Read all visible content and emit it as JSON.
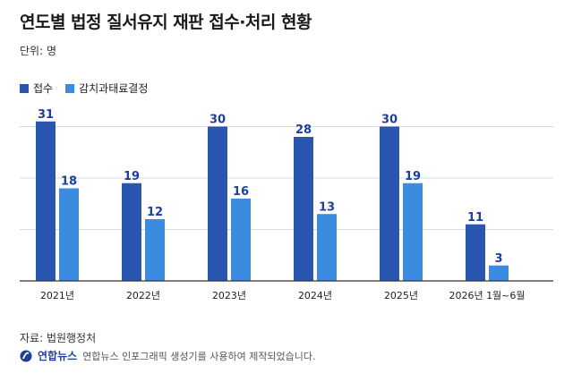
{
  "title": "연도별 법정 질서유지 재판 접수·처리 현황",
  "unit": "단위: 명",
  "source": "자료: 법원행정처",
  "footer": {
    "brand": "연합뉴스",
    "credit": "연합뉴스 인포그래픽 생성기를 사용하여 제작되었습니다."
  },
  "colors": {
    "series_1": "#2a55b0",
    "series_2": "#3b8be0",
    "label_text": "#1f3f9a",
    "grid": "#d9d9d9",
    "axis": "#333333"
  },
  "chart_data": {
    "type": "bar",
    "categories": [
      "2021년",
      "2022년",
      "2023년",
      "2024년",
      "2025년",
      "2026년 1월~6월"
    ],
    "series": [
      {
        "name": "접수",
        "values": [
          31,
          19,
          30,
          28,
          30,
          11
        ]
      },
      {
        "name": "감치과태료결정",
        "values": [
          18,
          12,
          16,
          13,
          19,
          3
        ]
      }
    ],
    "ylim": [
      0,
      32
    ],
    "grid": true,
    "legend": "top-left",
    "data_labels": true
  }
}
